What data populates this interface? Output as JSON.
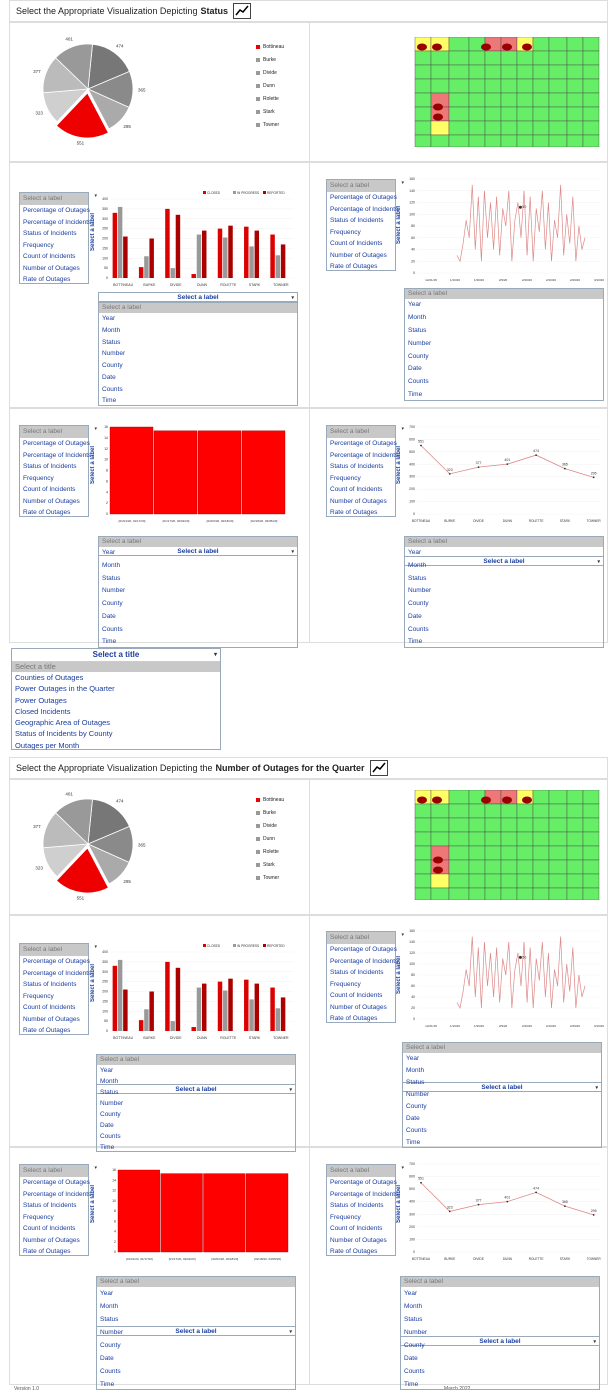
{
  "section1": {
    "header_prefix": "Select the Appropriate Visualization Depicting",
    "header_bold": "Status"
  },
  "section2": {
    "header_prefix": "Select the Appropriate Visualization Depicting the",
    "header_bold": "Number of Outages for the Quarter"
  },
  "pie": {
    "labels": [
      "474",
      "365",
      "295",
      "551",
      "323",
      "377",
      "401"
    ],
    "legend": [
      "Bottineau",
      "Burke",
      "Divide",
      "Dunn",
      "Rolette",
      "Stark",
      "Towner"
    ],
    "colors": [
      "#cc0000",
      "#999999",
      "#bbbbbb",
      "#777777",
      "#aaaaaa",
      "#666666",
      "#cccccc"
    ]
  },
  "label_selector": {
    "placeholder": "Select a label",
    "items": [
      "Percentage of Outages",
      "Percentage of Incidents",
      "Status of Incidents",
      "Frequency",
      "Count of Incidents",
      "Number of Outages",
      "Rate of Outages"
    ]
  },
  "axis_selector": {
    "title": "Select a label",
    "placeholder": "Select a label",
    "items": [
      "Year",
      "Month",
      "Status",
      "Number",
      "County",
      "Date",
      "Counts",
      "Time"
    ]
  },
  "y_axis_label": "Select a label",
  "title_selector": {
    "title": "Select a title",
    "placeholder": "Select a title",
    "items": [
      "Counties of Outages",
      "Power Outages in the Quarter",
      "Power Outages",
      "Closed Incidents",
      "Geographic Area of Outages",
      "Status of Incidents by County",
      "Outages per Month"
    ]
  },
  "chart_data": [
    {
      "type": "pie",
      "slices": [
        {
          "name": "Bottineau",
          "value": 551
        },
        {
          "name": "Burke",
          "value": 323
        },
        {
          "name": "Divide",
          "value": 377
        },
        {
          "name": "Dunn",
          "value": 401
        },
        {
          "name": "Rolette",
          "value": 474
        },
        {
          "name": "Stark",
          "value": 365
        },
        {
          "name": "Towner",
          "value": 295
        }
      ]
    },
    {
      "type": "bar",
      "categories": [
        "BOTTINEAU",
        "BURKE",
        "DIVIDE",
        "DUNN",
        "ROLETTE",
        "STARK",
        "TOWNER"
      ],
      "series": [
        {
          "name": "CLOSED",
          "values": [
            330,
            55,
            350,
            20,
            250,
            260,
            220
          ]
        },
        {
          "name": "IN PROGRESS",
          "values": [
            360,
            110,
            50,
            220,
            205,
            160,
            115
          ]
        },
        {
          "name": "REPORTED",
          "values": [
            210,
            200,
            320,
            240,
            265,
            240,
            170
          ]
        }
      ],
      "ylim": [
        0,
        400
      ],
      "yticks": [
        "400",
        "350",
        "300",
        "250",
        "200",
        "150",
        "100",
        "50",
        "0"
      ],
      "legend": "top-right"
    },
    {
      "type": "line",
      "xticks": [
        "12/21/18",
        "1/10/20",
        "1/30/20",
        "2/9/20",
        "2/20/20",
        "2/10/20",
        "2/29/20",
        "3/10/20"
      ],
      "yticks": [
        "160",
        "140",
        "120",
        "100",
        "80",
        "60",
        "40",
        "20",
        "0"
      ],
      "ylim": [
        0,
        160
      ],
      "annotation": "50"
    },
    {
      "type": "bar",
      "categories": [
        "[01/01/20, 01/17/20]",
        "[01/17/20, 02/02/20]",
        "[02/02/20, 02/18/20]",
        "[02/18/20, 03/05/20]"
      ],
      "values": [
        16,
        15.3,
        15.3,
        15.3
      ],
      "ylim": [
        0,
        16
      ],
      "yticks": [
        "16",
        "14",
        "12",
        "10",
        "8",
        "6",
        "4",
        "2",
        "0"
      ]
    },
    {
      "type": "line",
      "categories": [
        "BOTTINEAU",
        "BURKE",
        "DIVIDE",
        "DUNN",
        "ROLETTE",
        "STARK",
        "TOWNER"
      ],
      "values": [
        551,
        323,
        377,
        401,
        474,
        365,
        295
      ],
      "ylim": [
        0,
        700
      ],
      "yticks": [
        "700",
        "600",
        "500",
        "400",
        "300",
        "200",
        "100",
        "0"
      ]
    }
  ],
  "bar_legend": [
    "CLOSED",
    "IN PROGRESS",
    "REPORTED"
  ],
  "footer": {
    "version": "Version 1.0",
    "date": "March 2022"
  },
  "colors": {
    "accent": "#1a3ea0",
    "red": "#ff0000",
    "map_green": "#66ee66",
    "map_yellow": "#ffff66",
    "map_pink": "#ee7777"
  }
}
